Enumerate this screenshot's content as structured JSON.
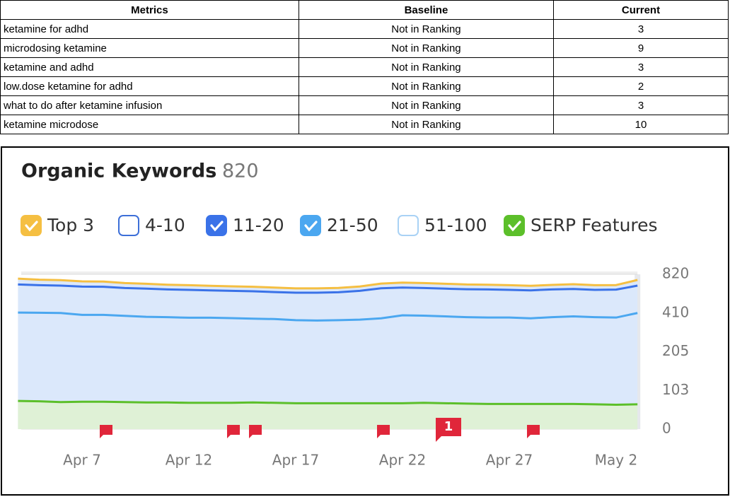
{
  "table": {
    "columns": [
      "Metrics",
      "Baseline",
      "Current"
    ],
    "rows": [
      [
        "ketamine for adhd",
        "Not in Ranking",
        3
      ],
      [
        "microdosing ketamine",
        "Not in Ranking",
        9
      ],
      [
        "ketamine and adhd",
        "Not in Ranking",
        3
      ],
      [
        "low.dose ketamine for adhd",
        "Not in Ranking",
        2
      ],
      [
        "what to do after ketamine infusion",
        "Not in Ranking",
        3
      ],
      [
        "ketamine microdose",
        "Not in Ranking",
        10
      ]
    ]
  },
  "chart_data": {
    "type": "stacked-area",
    "title": "Organic Keywords",
    "total": 820,
    "categories": [
      null,
      null,
      null,
      "Apr 7",
      null,
      null,
      null,
      null,
      "Apr 12",
      null,
      null,
      null,
      null,
      "Apr 17",
      null,
      null,
      null,
      null,
      "Apr 22",
      null,
      null,
      null,
      null,
      "Apr 27",
      null,
      null,
      null,
      null,
      "May 2",
      null
    ],
    "series": [
      {
        "name": "Top 3",
        "color": "#f5bf42",
        "checked": true,
        "stacked": true,
        "values": [
          62,
          58,
          58,
          55,
          55,
          52,
          52,
          50,
          50,
          48,
          48,
          48,
          48,
          46,
          46,
          46,
          46,
          50,
          52,
          52,
          52,
          50,
          50,
          50,
          48,
          48,
          50,
          50,
          48,
          60
        ]
      },
      {
        "name": "4-10",
        "color": "#3d6fd8",
        "checked": false
      },
      {
        "name": "11-20",
        "color": "#3a72e8",
        "checked": true,
        "stacked": true,
        "values": [
          297,
          292,
          290,
          290,
          288,
          280,
          278,
          272,
          270,
          265,
          262,
          260,
          254,
          253,
          255,
          258,
          270,
          290,
          282,
          279,
          276,
          274,
          274,
          269,
          268,
          272,
          273,
          267,
          272,
          290
        ]
      },
      {
        "name": "21-50",
        "color": "#4ba7f0",
        "checked": true,
        "stacked": true,
        "values": [
          415,
          413,
          410,
          400,
          400,
          395,
          390,
          388,
          385,
          385,
          383,
          380,
          378,
          372,
          370,
          372,
          375,
          382,
          398,
          396,
          392,
          388,
          386,
          386,
          382,
          388,
          392,
          388,
          386,
          410
        ]
      },
      {
        "name": "51-100",
        "color": "#a9d2f5",
        "checked": false
      },
      {
        "name": "SERP Features",
        "color": "#5cbf2a",
        "checked": true,
        "stacked": false,
        "values": [
          75,
          74,
          72,
          73,
          73,
          72,
          71,
          71,
          70,
          70,
          70,
          71,
          70,
          69,
          69,
          69,
          69,
          69,
          69,
          70,
          69,
          68,
          67,
          67,
          67,
          67,
          67,
          66,
          65,
          66
        ]
      }
    ],
    "ylim": [
      0,
      820
    ],
    "yticks": [
      0,
      103,
      205,
      410,
      820
    ],
    "grid": true,
    "annotation": "1"
  }
}
